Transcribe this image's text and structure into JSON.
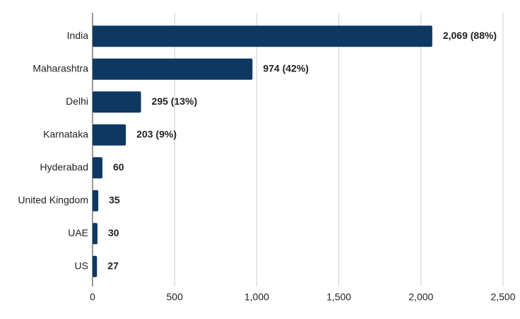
{
  "chart_data": {
    "type": "bar",
    "orientation": "horizontal",
    "categories": [
      "India",
      "Maharashtra",
      "Delhi",
      "Karnataka",
      "Hyderabad",
      "United Kingdom",
      "UAE",
      "US"
    ],
    "values": [
      2069,
      974,
      295,
      203,
      60,
      35,
      30,
      27
    ],
    "value_labels": [
      "2,069 (88%)",
      "974 (42%)",
      "295 (13%)",
      "203 (9%)",
      "60",
      "35",
      "30",
      "27"
    ],
    "value_label_colors": [
      "#111111",
      "#111111",
      "#111111",
      "#111111",
      "#111111",
      "#e8892b",
      "#e8892b",
      "#f2ab2e"
    ],
    "color": "#0d3862",
    "xlim": [
      0,
      2500
    ],
    "xticks": [
      0,
      500,
      {
        "value": 1000,
        "label": "1,000"
      },
      {
        "value": 1500,
        "label": "1,500"
      },
      {
        "value": 2000,
        "label": "2,000"
      },
      {
        "value": 2500,
        "label": "2,500"
      }
    ],
    "grid": true
  }
}
